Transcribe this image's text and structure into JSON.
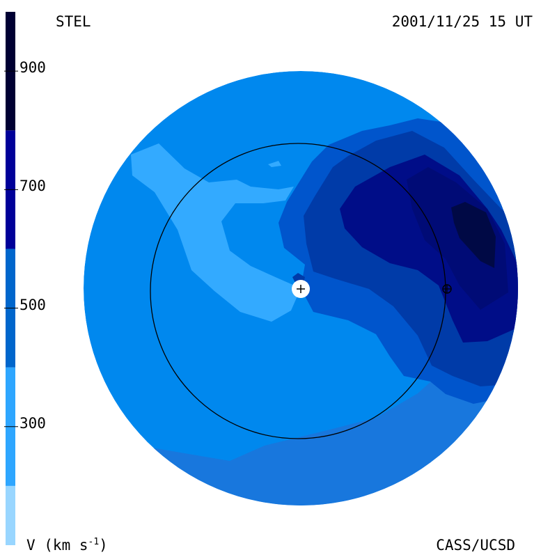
{
  "header": {
    "source": "STEL",
    "timestamp": "2001/11/25 15 UT",
    "credit": "CASS/UCSD"
  },
  "colorbar": {
    "label": "V (km s",
    "label_sup": "-1",
    "label_end": ")",
    "tick_labels": [
      "900",
      "700",
      "500",
      "300"
    ],
    "ticks": [
      900,
      700,
      500,
      300
    ],
    "range": [
      100,
      1000
    ],
    "bands": [
      {
        "from": 100,
        "to": 200,
        "color": "#99d6ff"
      },
      {
        "from": 200,
        "to": 400,
        "color": "#2ea6ff"
      },
      {
        "from": 400,
        "to": 600,
        "color": "#0066cc"
      },
      {
        "from": 600,
        "to": 800,
        "color": "#000099"
      },
      {
        "from": 800,
        "to": 1000,
        "color": "#000033"
      }
    ]
  },
  "chart_data": {
    "type": "heatmap",
    "title": "",
    "quantity": "V (km s-1)",
    "contour_levels": [
      300,
      350,
      400,
      450,
      500,
      550,
      600,
      650,
      700,
      750,
      800
    ],
    "regions": [
      {
        "name": "background",
        "approx_value": 400,
        "color": "#0088ee"
      },
      {
        "name": "slow-wind-arm",
        "approx_value": 300,
        "color": "#33aaff"
      },
      {
        "name": "outer-ring-south",
        "approx_value": 450,
        "color": "#1877dd"
      },
      {
        "name": "medium-east",
        "approx_value": 500,
        "color": "#0055cc"
      },
      {
        "name": "fast-east",
        "approx_value": 550,
        "color": "#003ba8"
      },
      {
        "name": "fast-core",
        "approx_value": 650,
        "color": "#000d88"
      },
      {
        "name": "peak",
        "approx_value": 800,
        "color": "#000a3d"
      }
    ],
    "markers": [
      "sun",
      "earth-orbit",
      "earth"
    ]
  }
}
